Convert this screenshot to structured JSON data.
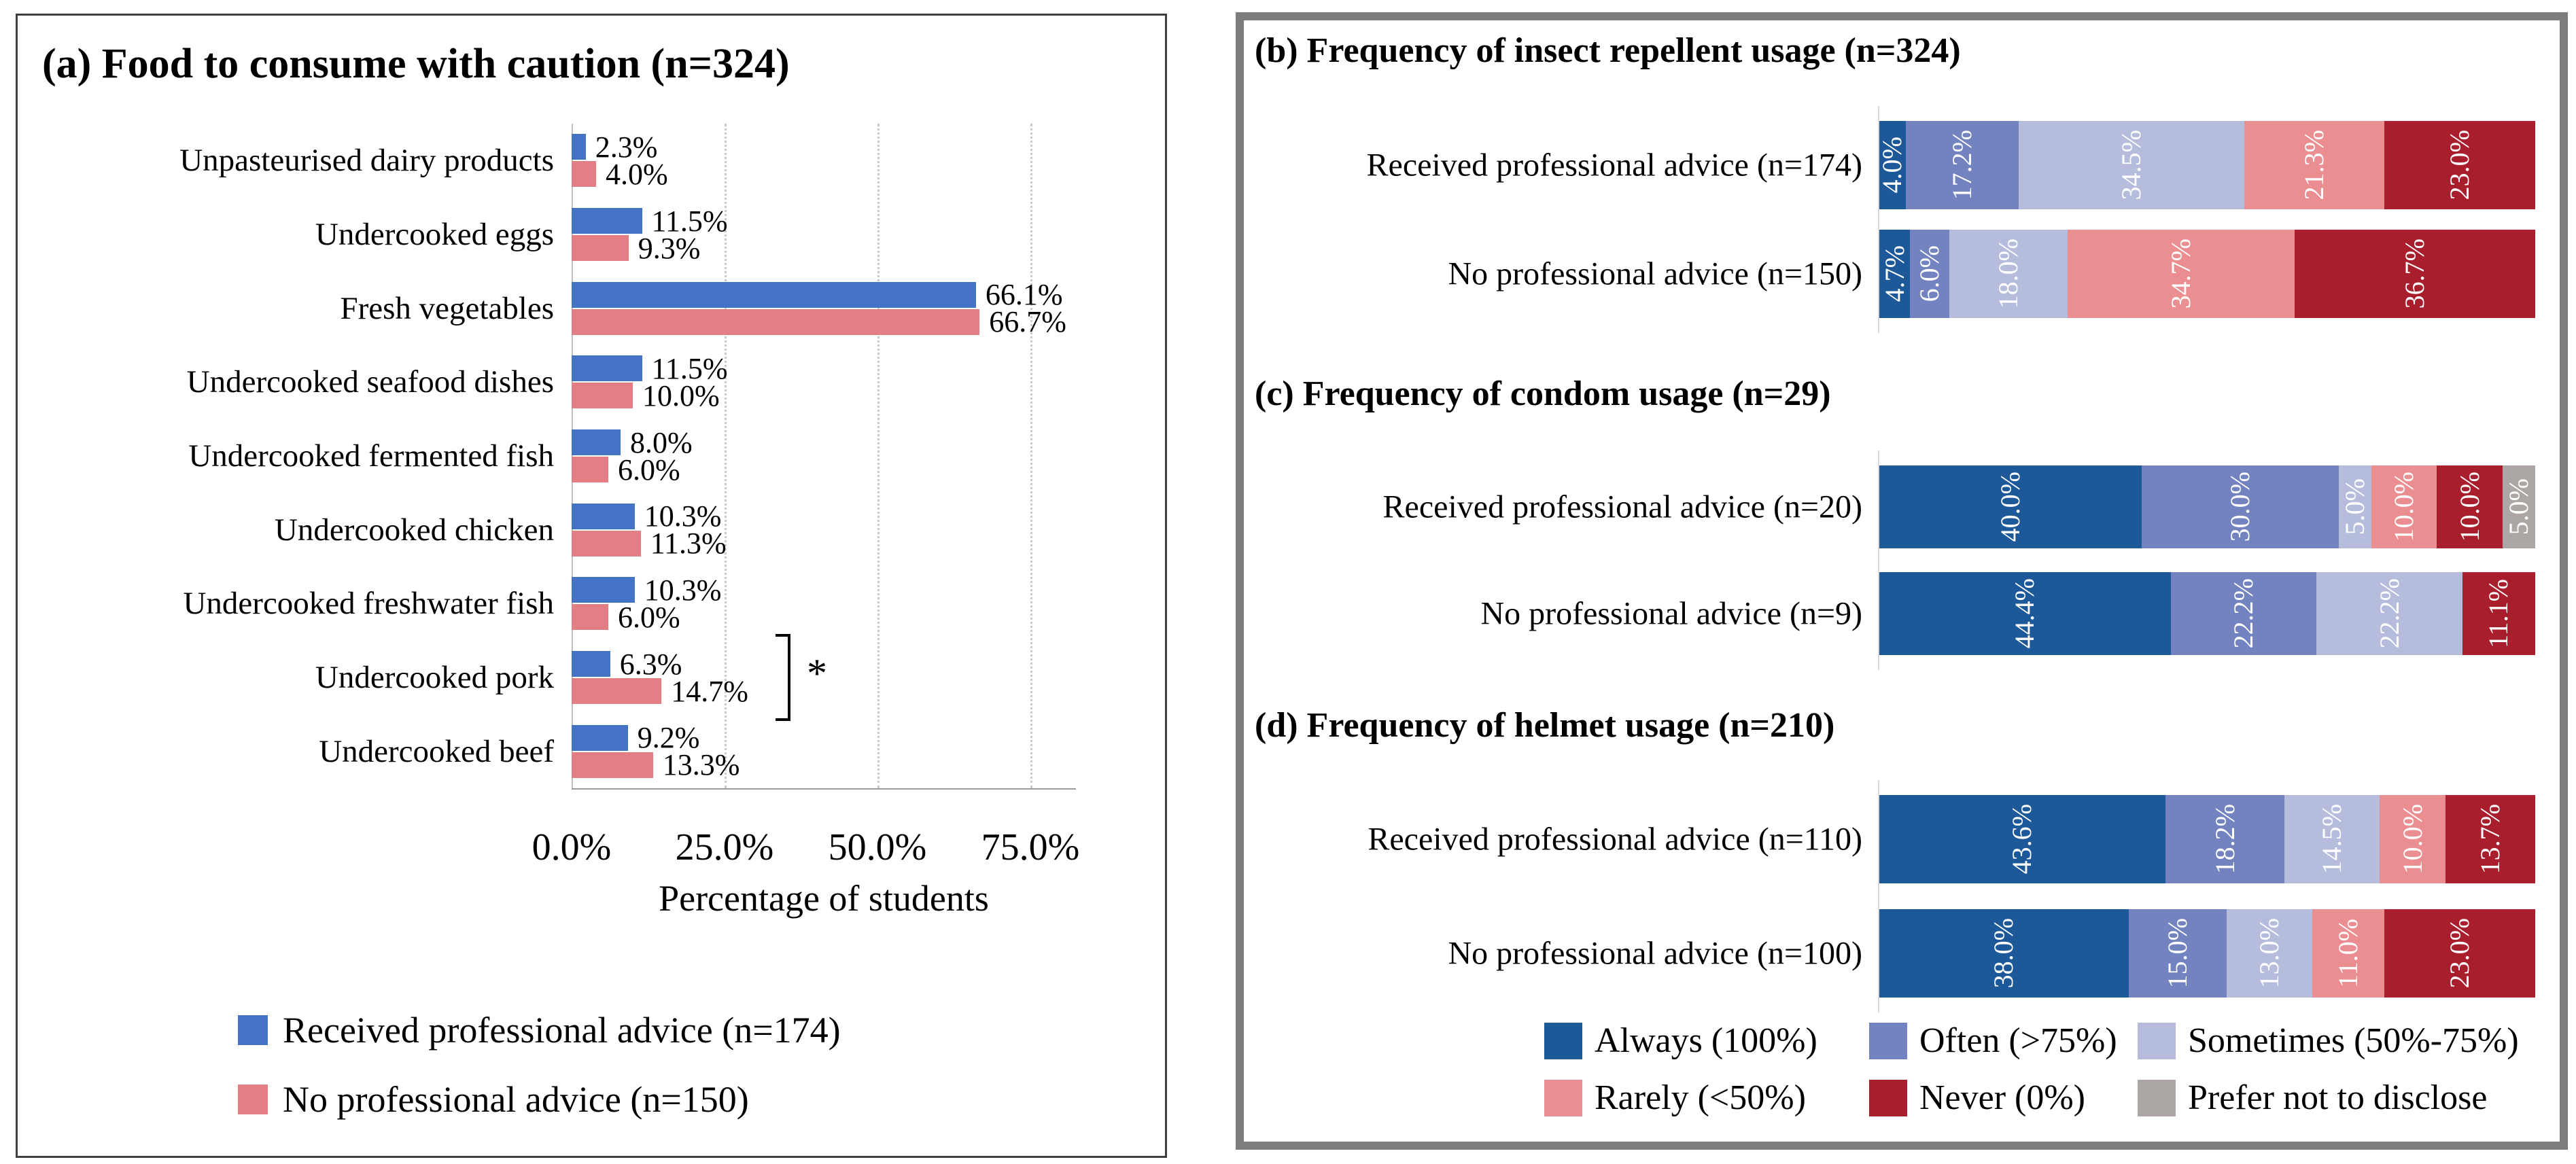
{
  "colors": {
    "panel_a_received": "#4472C4",
    "panel_a_none": "#E27E84",
    "always": "#1D5899",
    "often": "#7283BF",
    "sometimes": "#B6BDDC",
    "rarely": "#EB8E92",
    "never": "#A81E2D",
    "prefer": "#ACA7A4",
    "panel_a_border": "#3F3F3F",
    "panel_right_border": "#7D7D7D",
    "gridline": "#C9C9C9"
  },
  "panel_a": {
    "title": "(a) Food to consume with caution (n=324)",
    "xlabel": "Percentage of students",
    "x_ticks": [
      "0.0%",
      "25.0%",
      "50.0%",
      "75.0%"
    ],
    "legend": [
      {
        "label": "Received professional advice (n=174)",
        "color_key": "panel_a_received"
      },
      {
        "label": "No professional advice (n=150)",
        "color_key": "panel_a_none"
      }
    ],
    "significance_marker": "*"
  },
  "panel_right": {
    "titles": {
      "b": "(b) Frequency of insect repellent usage (n=324)",
      "c": "(c) Frequency of condom usage (n=29)",
      "d": "(d) Frequency of helmet usage (n=210)"
    },
    "legend": [
      {
        "key": "always",
        "label": "Always (100%)"
      },
      {
        "key": "often",
        "label": "Often (>75%)"
      },
      {
        "key": "sometimes",
        "label": "Sometimes (50%-75%)"
      },
      {
        "key": "rarely",
        "label": "Rarely (<50%)"
      },
      {
        "key": "never",
        "label": "Never (0%)"
      },
      {
        "key": "prefer",
        "label": "Prefer not to disclose"
      }
    ]
  },
  "chart_data": [
    {
      "type": "bar",
      "orientation": "horizontal",
      "panel": "a",
      "title": "(a) Food to consume with caution (n=324)",
      "xlabel": "Percentage of students",
      "xlim": [
        0,
        82.5
      ],
      "x_ticks_percent": [
        0,
        25,
        50,
        75
      ],
      "grid": true,
      "categories": [
        "Unpasteurised dairy products",
        "Undercooked eggs",
        "Fresh vegetables",
        "Undercooked seafood dishes",
        "Undercooked fermented fish",
        "Undercooked chicken",
        "Undercooked freshwater fish",
        "Undercooked pork",
        "Undercooked beef"
      ],
      "series": [
        {
          "name": "Received professional advice (n=174)",
          "color_key": "panel_a_received",
          "values": [
            2.3,
            11.5,
            66.1,
            11.5,
            8.0,
            10.3,
            10.3,
            6.3,
            9.2
          ]
        },
        {
          "name": "No professional advice (n=150)",
          "color_key": "panel_a_none",
          "values": [
            4.0,
            9.3,
            66.7,
            10.0,
            6.0,
            11.3,
            6.0,
            14.7,
            13.3
          ]
        }
      ],
      "annotations": [
        {
          "category": "Undercooked pork",
          "text": "*",
          "meaning": "significant-difference-bracket"
        }
      ]
    },
    {
      "type": "bar",
      "subtype": "stacked-100",
      "panel": "b",
      "title": "(b) Frequency of insect repellent usage (n=324)",
      "rows": [
        {
          "label": "Received professional advice (n=174)",
          "segments": [
            {
              "key": "always",
              "value": 4.0
            },
            {
              "key": "often",
              "value": 17.2
            },
            {
              "key": "sometimes",
              "value": 34.5
            },
            {
              "key": "rarely",
              "value": 21.3
            },
            {
              "key": "never",
              "value": 23.0
            }
          ]
        },
        {
          "label": "No professional advice (n=150)",
          "segments": [
            {
              "key": "always",
              "value": 4.7
            },
            {
              "key": "often",
              "value": 6.0
            },
            {
              "key": "sometimes",
              "value": 18.0
            },
            {
              "key": "rarely",
              "value": 34.7
            },
            {
              "key": "never",
              "value": 36.7
            }
          ]
        }
      ]
    },
    {
      "type": "bar",
      "subtype": "stacked-100",
      "panel": "c",
      "title": "(c) Frequency of condom usage (n=29)",
      "rows": [
        {
          "label": "Received professional advice (n=20)",
          "segments": [
            {
              "key": "always",
              "value": 40.0
            },
            {
              "key": "often",
              "value": 30.0
            },
            {
              "key": "sometimes",
              "value": 5.0
            },
            {
              "key": "rarely",
              "value": 10.0
            },
            {
              "key": "never",
              "value": 10.0
            },
            {
              "key": "prefer",
              "value": 5.0
            }
          ]
        },
        {
          "label": "No professional advice (n=9)",
          "segments": [
            {
              "key": "always",
              "value": 44.4
            },
            {
              "key": "often",
              "value": 22.2
            },
            {
              "key": "sometimes",
              "value": 22.2
            },
            {
              "key": "never",
              "value": 11.1
            }
          ]
        }
      ]
    },
    {
      "type": "bar",
      "subtype": "stacked-100",
      "panel": "d",
      "title": "(d) Frequency of helmet usage (n=210)",
      "rows": [
        {
          "label": "Received professional advice (n=110)",
          "segments": [
            {
              "key": "always",
              "value": 43.6
            },
            {
              "key": "often",
              "value": 18.2
            },
            {
              "key": "sometimes",
              "value": 14.5
            },
            {
              "key": "rarely",
              "value": 10.0
            },
            {
              "key": "never",
              "value": 13.7
            }
          ]
        },
        {
          "label": "No professional advice (n=100)",
          "segments": [
            {
              "key": "always",
              "value": 38.0
            },
            {
              "key": "often",
              "value": 15.0
            },
            {
              "key": "sometimes",
              "value": 13.0
            },
            {
              "key": "rarely",
              "value": 11.0
            },
            {
              "key": "never",
              "value": 23.0
            }
          ]
        }
      ]
    }
  ]
}
